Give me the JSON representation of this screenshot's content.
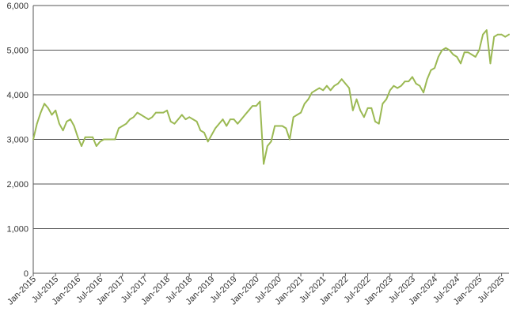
{
  "chart_data": {
    "type": "line",
    "title": "",
    "xlabel": "",
    "ylabel": "",
    "ylim": [
      0,
      6000
    ],
    "grid": "horizontal",
    "legend": "none",
    "yticks": [
      {
        "value": 0,
        "label": "0"
      },
      {
        "value": 1000,
        "label": "1,000"
      },
      {
        "value": 2000,
        "label": "2,000"
      },
      {
        "value": 3000,
        "label": "3,000"
      },
      {
        "value": 4000,
        "label": "4,000"
      },
      {
        "value": 5000,
        "label": "5,000"
      },
      {
        "value": 6000,
        "label": "6,000"
      }
    ],
    "xticks": [
      "Jan-2015",
      "Jul-2015",
      "Jan-2016",
      "Jul-2016",
      "Jan-2017",
      "Jul-2017",
      "Jan-2018",
      "Jul-2018",
      "Jan-2019",
      "Jul-2019",
      "Jan-2020",
      "Jul-2020",
      "Jan-2021",
      "Jul-2021",
      "Jan-2022",
      "Jul-2022",
      "Jan-2023",
      "Jul-2023",
      "Jan-2024",
      "Jul-2024",
      "Jan-2025",
      "Jul-2025"
    ],
    "xrange": [
      "2015-01",
      "2025-09"
    ],
    "series": [
      {
        "color": "#9bb953",
        "points": [
          [
            "2015-01",
            3000
          ],
          [
            "2015-02",
            3350
          ],
          [
            "2015-03",
            3600
          ],
          [
            "2015-04",
            3800
          ],
          [
            "2015-05",
            3700
          ],
          [
            "2015-06",
            3550
          ],
          [
            "2015-07",
            3650
          ],
          [
            "2015-08",
            3350
          ],
          [
            "2015-09",
            3200
          ],
          [
            "2015-10",
            3400
          ],
          [
            "2015-11",
            3450
          ],
          [
            "2015-12",
            3300
          ],
          [
            "2016-01",
            3050
          ],
          [
            "2016-02",
            2850
          ],
          [
            "2016-03",
            3050
          ],
          [
            "2016-04",
            3050
          ],
          [
            "2016-05",
            3050
          ],
          [
            "2016-06",
            2850
          ],
          [
            "2016-07",
            2950
          ],
          [
            "2016-08",
            3000
          ],
          [
            "2016-09",
            3000
          ],
          [
            "2016-10",
            3000
          ],
          [
            "2016-11",
            3000
          ],
          [
            "2016-12",
            3250
          ],
          [
            "2017-01",
            3300
          ],
          [
            "2017-02",
            3350
          ],
          [
            "2017-03",
            3450
          ],
          [
            "2017-04",
            3500
          ],
          [
            "2017-05",
            3600
          ],
          [
            "2017-06",
            3550
          ],
          [
            "2017-07",
            3500
          ],
          [
            "2017-08",
            3450
          ],
          [
            "2017-09",
            3500
          ],
          [
            "2017-10",
            3600
          ],
          [
            "2017-11",
            3600
          ],
          [
            "2017-12",
            3600
          ],
          [
            "2018-01",
            3650
          ],
          [
            "2018-02",
            3400
          ],
          [
            "2018-03",
            3350
          ],
          [
            "2018-04",
            3450
          ],
          [
            "2018-05",
            3550
          ],
          [
            "2018-06",
            3450
          ],
          [
            "2018-07",
            3500
          ],
          [
            "2018-08",
            3450
          ],
          [
            "2018-09",
            3400
          ],
          [
            "2018-10",
            3200
          ],
          [
            "2018-11",
            3150
          ],
          [
            "2018-12",
            2950
          ],
          [
            "2019-01",
            3100
          ],
          [
            "2019-02",
            3250
          ],
          [
            "2019-03",
            3350
          ],
          [
            "2019-04",
            3450
          ],
          [
            "2019-05",
            3300
          ],
          [
            "2019-06",
            3450
          ],
          [
            "2019-07",
            3450
          ],
          [
            "2019-08",
            3350
          ],
          [
            "2019-09",
            3450
          ],
          [
            "2019-10",
            3550
          ],
          [
            "2019-11",
            3650
          ],
          [
            "2019-12",
            3750
          ],
          [
            "2020-01",
            3750
          ],
          [
            "2020-02",
            3850
          ],
          [
            "2020-03",
            2450
          ],
          [
            "2020-04",
            2850
          ],
          [
            "2020-05",
            2950
          ],
          [
            "2020-06",
            3300
          ],
          [
            "2020-07",
            3300
          ],
          [
            "2020-08",
            3300
          ],
          [
            "2020-09",
            3250
          ],
          [
            "2020-10",
            3000
          ],
          [
            "2020-11",
            3500
          ],
          [
            "2020-12",
            3550
          ],
          [
            "2021-01",
            3600
          ],
          [
            "2021-02",
            3800
          ],
          [
            "2021-03",
            3900
          ],
          [
            "2021-04",
            4050
          ],
          [
            "2021-05",
            4100
          ],
          [
            "2021-06",
            4150
          ],
          [
            "2021-07",
            4100
          ],
          [
            "2021-08",
            4200
          ],
          [
            "2021-09",
            4100
          ],
          [
            "2021-10",
            4200
          ],
          [
            "2021-11",
            4250
          ],
          [
            "2021-12",
            4350
          ],
          [
            "2022-01",
            4250
          ],
          [
            "2022-02",
            4150
          ],
          [
            "2022-03",
            3650
          ],
          [
            "2022-04",
            3900
          ],
          [
            "2022-05",
            3650
          ],
          [
            "2022-06",
            3500
          ],
          [
            "2022-07",
            3700
          ],
          [
            "2022-08",
            3700
          ],
          [
            "2022-09",
            3400
          ],
          [
            "2022-10",
            3350
          ],
          [
            "2022-11",
            3800
          ],
          [
            "2022-12",
            3900
          ],
          [
            "2023-01",
            4100
          ],
          [
            "2023-02",
            4200
          ],
          [
            "2023-03",
            4150
          ],
          [
            "2023-04",
            4200
          ],
          [
            "2023-05",
            4300
          ],
          [
            "2023-06",
            4300
          ],
          [
            "2023-07",
            4400
          ],
          [
            "2023-08",
            4250
          ],
          [
            "2023-09",
            4200
          ],
          [
            "2023-10",
            4050
          ],
          [
            "2023-11",
            4350
          ],
          [
            "2023-12",
            4550
          ],
          [
            "2024-01",
            4600
          ],
          [
            "2024-02",
            4850
          ],
          [
            "2024-03",
            5000
          ],
          [
            "2024-04",
            5050
          ],
          [
            "2024-05",
            5000
          ],
          [
            "2024-06",
            4900
          ],
          [
            "2024-07",
            4850
          ],
          [
            "2024-08",
            4700
          ],
          [
            "2024-09",
            4950
          ],
          [
            "2024-10",
            4950
          ],
          [
            "2024-11",
            4900
          ],
          [
            "2024-12",
            4850
          ],
          [
            "2025-01",
            5000
          ],
          [
            "2025-02",
            5350
          ],
          [
            "2025-03",
            5450
          ],
          [
            "2025-04",
            4700
          ],
          [
            "2025-05",
            5300
          ],
          [
            "2025-06",
            5350
          ],
          [
            "2025-07",
            5350
          ],
          [
            "2025-08",
            5300
          ],
          [
            "2025-09",
            5350
          ]
        ]
      }
    ]
  }
}
